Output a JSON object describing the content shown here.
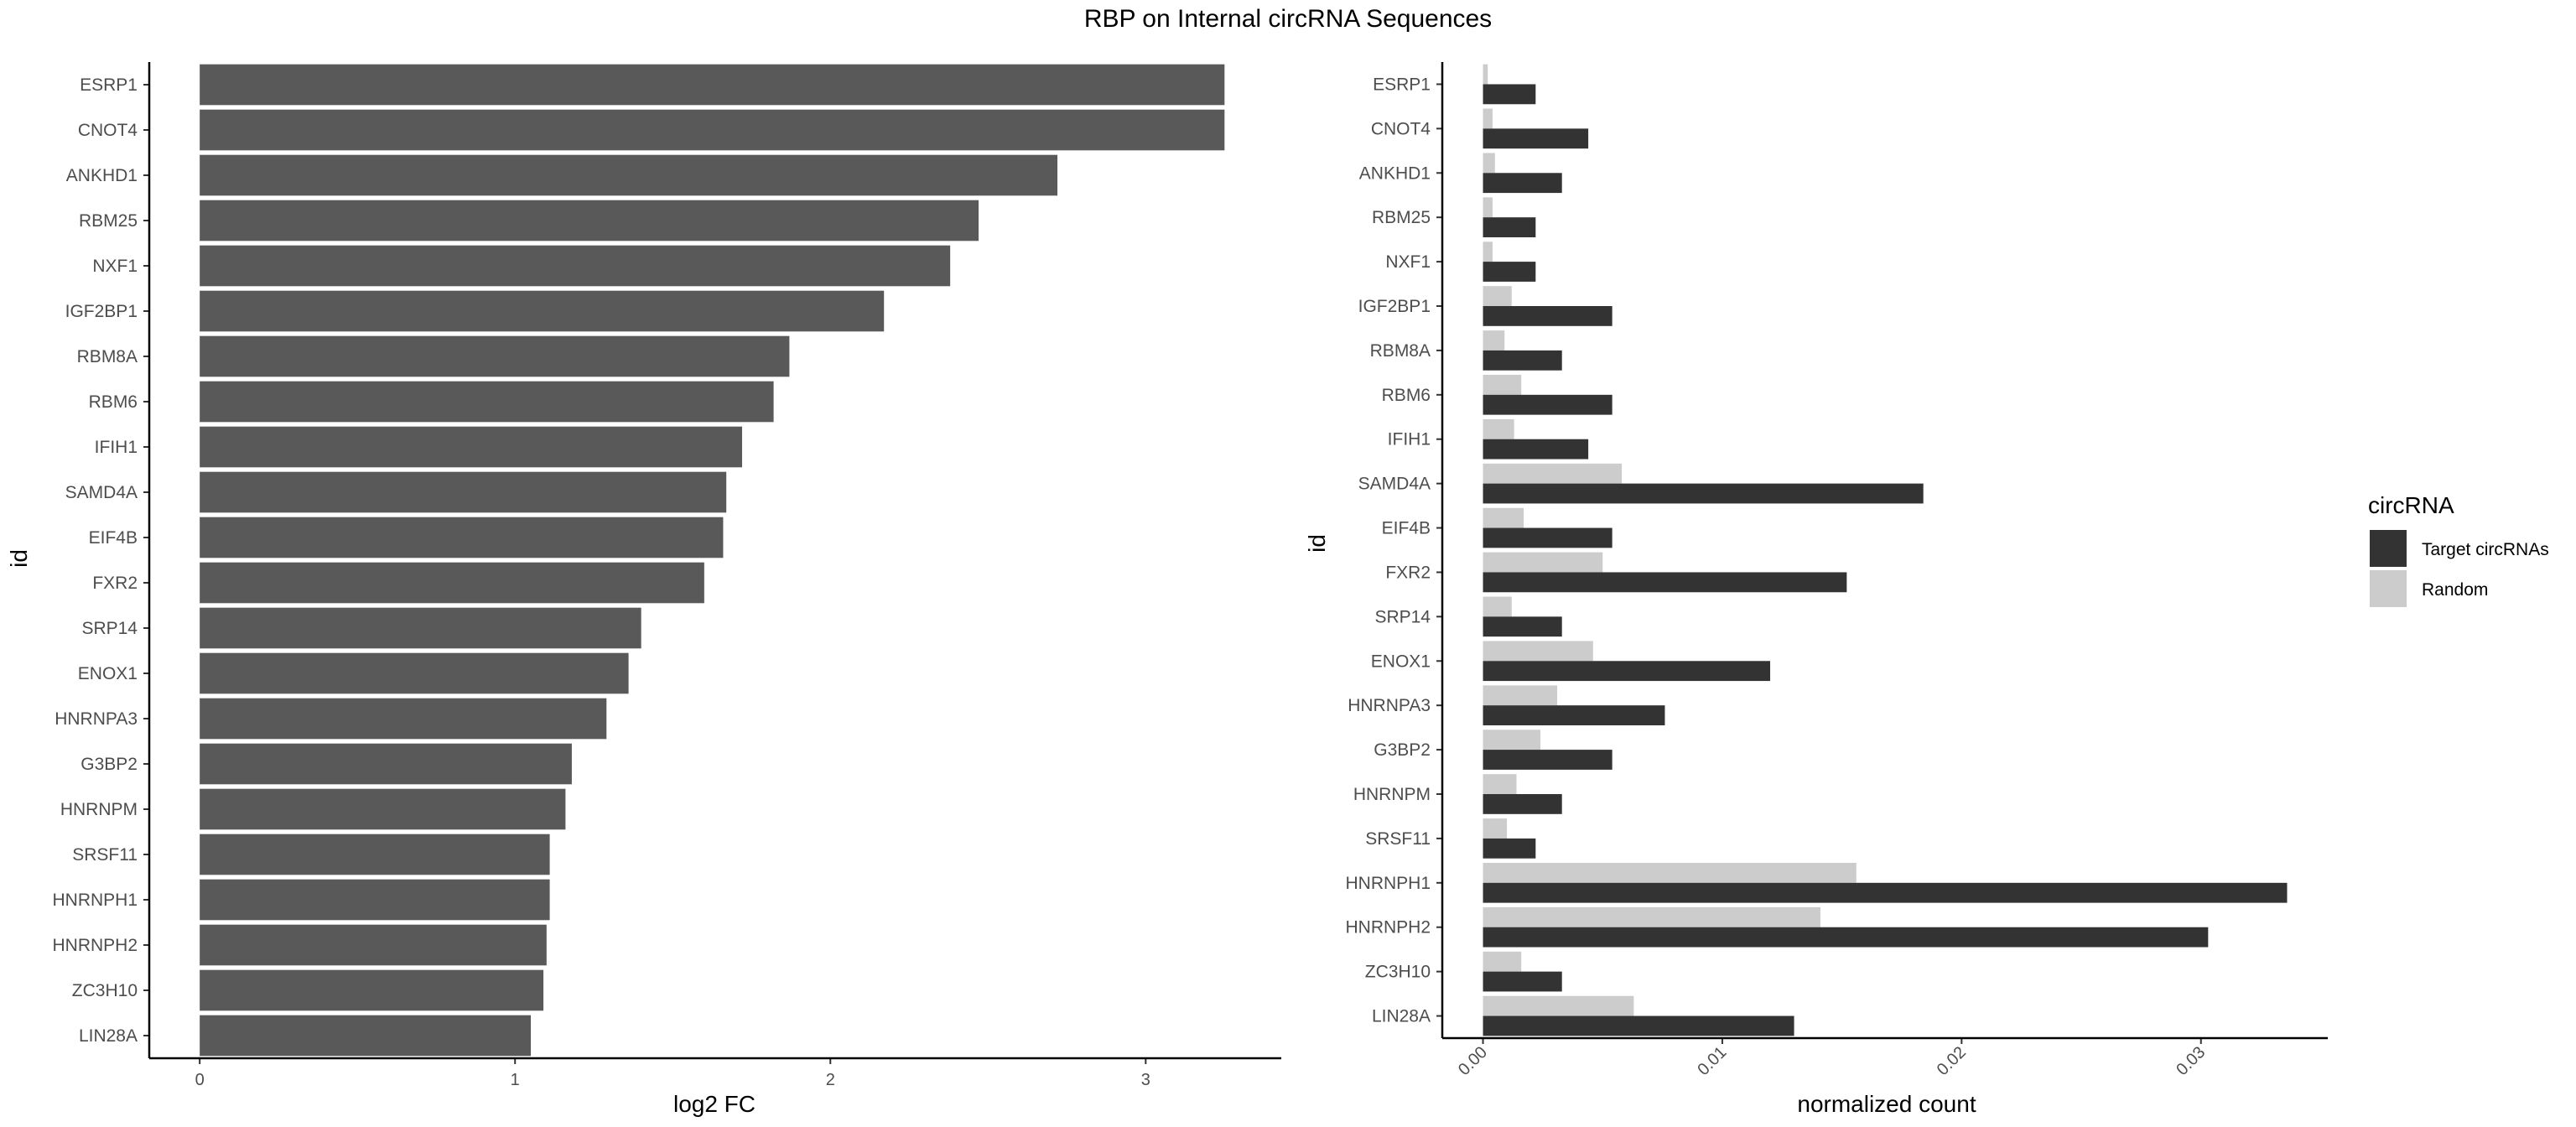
{
  "title": "RBP on Internal circRNA Sequences",
  "chart_data": [
    {
      "type": "bar",
      "orientation": "horizontal",
      "xlabel": "log2 FC",
      "ylabel": "id",
      "xlim": [
        -0.16,
        3.43
      ],
      "xticks": [
        0,
        1,
        2,
        3
      ],
      "grid": false,
      "categories": [
        "ESRP1",
        "CNOT4",
        "ANKHD1",
        "RBM25",
        "NXF1",
        "IGF2BP1",
        "RBM8A",
        "RBM6",
        "IFIH1",
        "SAMD4A",
        "EIF4B",
        "FXR2",
        "SRP14",
        "ENOX1",
        "HNRNPA3",
        "G3BP2",
        "HNRNPM",
        "SRSF11",
        "HNRNPH1",
        "HNRNPH2",
        "ZC3H10",
        "LIN28A"
      ],
      "values": [
        3.25,
        3.25,
        2.72,
        2.47,
        2.38,
        2.17,
        1.87,
        1.82,
        1.72,
        1.67,
        1.66,
        1.6,
        1.4,
        1.36,
        1.29,
        1.18,
        1.16,
        1.11,
        1.11,
        1.1,
        1.09,
        1.05
      ],
      "color": "#595959"
    },
    {
      "type": "bar",
      "orientation": "horizontal",
      "grouped": true,
      "xlabel": "normalized count",
      "ylabel": "id",
      "xlim": [
        -0.0017,
        0.0353
      ],
      "xticks": [
        0.0,
        0.01,
        0.02,
        0.03
      ],
      "xtick_labels": [
        "0.00",
        "0.01",
        "0.02",
        "0.03"
      ],
      "grid": false,
      "categories": [
        "ESRP1",
        "CNOT4",
        "ANKHD1",
        "RBM25",
        "NXF1",
        "IGF2BP1",
        "RBM8A",
        "RBM6",
        "IFIH1",
        "SAMD4A",
        "EIF4B",
        "FXR2",
        "SRP14",
        "ENOX1",
        "HNRNPA3",
        "G3BP2",
        "HNRNPM",
        "SRSF11",
        "HNRNPH1",
        "HNRNPH2",
        "ZC3H10",
        "LIN28A"
      ],
      "legend_title": "circRNA",
      "legend_position": "right",
      "series": [
        {
          "name": "Target circRNAs",
          "color": "#333333",
          "values": [
            0.0022,
            0.0044,
            0.0033,
            0.0022,
            0.0022,
            0.0054,
            0.0033,
            0.0054,
            0.0044,
            0.0184,
            0.0054,
            0.0152,
            0.0033,
            0.012,
            0.0076,
            0.0054,
            0.0033,
            0.0022,
            0.0336,
            0.0303,
            0.0033,
            0.013
          ]
        },
        {
          "name": "Random",
          "color": "#cccccc",
          "values": [
            0.0002,
            0.0004,
            0.0005,
            0.0004,
            0.0004,
            0.0012,
            0.0009,
            0.0016,
            0.0013,
            0.0058,
            0.0017,
            0.005,
            0.0012,
            0.0046,
            0.0031,
            0.0024,
            0.0014,
            0.001,
            0.0156,
            0.0141,
            0.0016,
            0.0063
          ]
        }
      ]
    }
  ]
}
